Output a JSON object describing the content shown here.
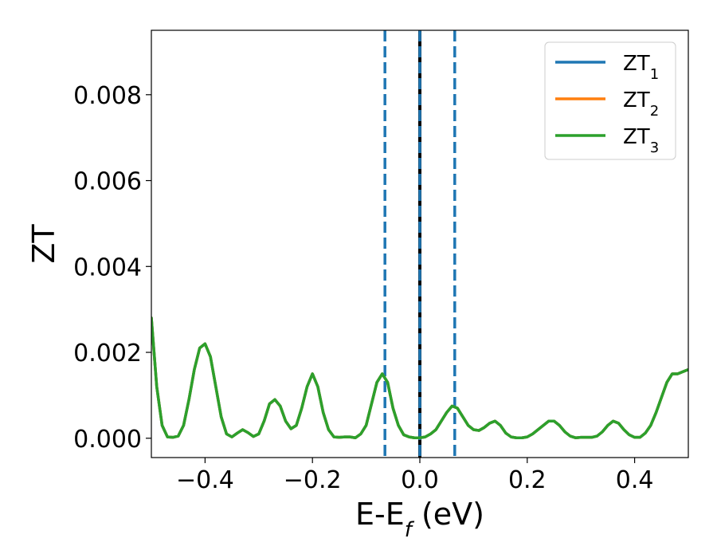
{
  "chart_data": {
    "type": "line",
    "xlabel": "E-E",
    "xlabel_sub": "f",
    "xlabel_unit": " (eV)",
    "ylabel": "ZT",
    "xlim": [
      -0.5,
      0.5
    ],
    "ylim": [
      -0.00045,
      0.0095
    ],
    "xticks": [
      -0.4,
      -0.2,
      0.0,
      0.2,
      0.4
    ],
    "xtick_labels": [
      "−0.4",
      "−0.2",
      "0.0",
      "0.2",
      "0.4"
    ],
    "yticks": [
      0.0,
      0.002,
      0.004,
      0.006,
      0.008
    ],
    "ytick_labels": [
      "0.000",
      "0.002",
      "0.004",
      "0.006",
      "0.008"
    ],
    "grid": false,
    "legend_position": "top-right",
    "vlines": [
      {
        "x": -0.065,
        "style": "dashed",
        "color": "#1f77b4"
      },
      {
        "x": 0.0,
        "style": "solid",
        "color": "#000000"
      },
      {
        "x": 0.0,
        "style": "dashed",
        "color": "#1f77b4"
      },
      {
        "x": 0.065,
        "style": "dashed",
        "color": "#1f77b4"
      }
    ],
    "series": [
      {
        "name": "ZT",
        "sub": "1",
        "color": "#1f77b4",
        "x": [
          -0.5,
          -0.49,
          -0.48,
          -0.47,
          -0.46,
          -0.45,
          -0.44,
          -0.43,
          -0.42,
          -0.41,
          -0.4,
          -0.39,
          -0.38,
          -0.37,
          -0.36,
          -0.35,
          -0.34,
          -0.33,
          -0.32,
          -0.31,
          -0.3,
          -0.29,
          -0.28,
          -0.27,
          -0.26,
          -0.25,
          -0.24,
          -0.23,
          -0.22,
          -0.21,
          -0.2,
          -0.19,
          -0.18,
          -0.17,
          -0.16,
          -0.15,
          -0.14,
          -0.13,
          -0.12,
          -0.11,
          -0.1,
          -0.09,
          -0.08,
          -0.07,
          -0.06,
          -0.05,
          -0.04,
          -0.03,
          -0.02,
          -0.01,
          0.0,
          0.01,
          0.02,
          0.03,
          0.04,
          0.05,
          0.06,
          0.07,
          0.08,
          0.09,
          0.1,
          0.11,
          0.12,
          0.13,
          0.14,
          0.15,
          0.16,
          0.17,
          0.18,
          0.19,
          0.2,
          0.21,
          0.22,
          0.23,
          0.24,
          0.25,
          0.26,
          0.27,
          0.28,
          0.29,
          0.3,
          0.31,
          0.32,
          0.33,
          0.34,
          0.35,
          0.36,
          0.37,
          0.38,
          0.39,
          0.4,
          0.41,
          0.42,
          0.43,
          0.44,
          0.45,
          0.46,
          0.47,
          0.48,
          0.49,
          0.5
        ],
        "y": [
          0.0028,
          0.0012,
          0.0003,
          3e-05,
          2e-05,
          5e-05,
          0.0003,
          0.0009,
          0.0016,
          0.0021,
          0.0022,
          0.0019,
          0.0012,
          0.0005,
          0.0001,
          3e-05,
          0.00012,
          0.0002,
          0.00013,
          4e-05,
          0.0001,
          0.0004,
          0.0008,
          0.0009,
          0.00075,
          0.0004,
          0.00022,
          0.0003,
          0.0007,
          0.0012,
          0.0015,
          0.0012,
          0.0006,
          0.0002,
          3e-05,
          2e-05,
          3e-05,
          3e-05,
          1e-05,
          0.0001,
          0.0003,
          0.0008,
          0.0013,
          0.0015,
          0.0013,
          0.0007,
          0.0003,
          8e-05,
          3e-05,
          1e-05,
          1e-05,
          3e-05,
          0.0001,
          0.0002,
          0.0004,
          0.0006,
          0.00075,
          0.0007,
          0.0005,
          0.0003,
          0.0002,
          0.00018,
          0.00025,
          0.00035,
          0.0004,
          0.0003,
          0.00012,
          3e-05,
          1e-05,
          1e-05,
          3e-05,
          0.0001,
          0.0002,
          0.0003,
          0.0004,
          0.0004,
          0.0003,
          0.00015,
          5e-05,
          1e-05,
          2e-05,
          2e-05,
          2e-05,
          5e-05,
          0.00015,
          0.0003,
          0.0004,
          0.00035,
          0.0002,
          8e-05,
          2e-05,
          2e-05,
          0.00012,
          0.0003,
          0.0006,
          0.00095,
          0.0013,
          0.0015,
          0.0015,
          0.00155,
          0.0016
        ]
      },
      {
        "name": "ZT",
        "sub": "2",
        "color": "#ff7f0e",
        "same_as": 0
      },
      {
        "name": "ZT",
        "sub": "3",
        "color": "#2ca02c",
        "same_as": 0
      }
    ]
  }
}
